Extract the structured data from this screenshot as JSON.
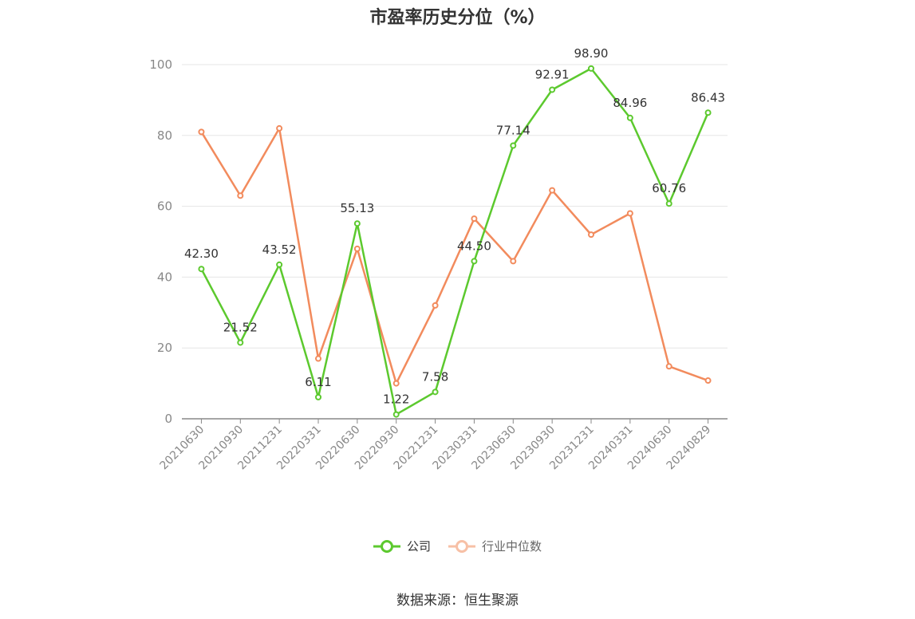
{
  "title": "市盈率历史分位（%）",
  "source": "数据来源：恒生聚源",
  "colors": {
    "company": "#5cc92e",
    "industry": "#f28b5d",
    "grid": "#e6e6e6",
    "axis": "#888888",
    "tick": "#888888"
  },
  "chart_data": {
    "type": "line",
    "title": "市盈率历史分位（%）",
    "xlabel": "",
    "ylabel": "",
    "ylim": [
      0,
      100
    ],
    "yticks": [
      0,
      20,
      40,
      60,
      80,
      100
    ],
    "grid": true,
    "legend_position": "bottom",
    "categories": [
      "20210630",
      "20210930",
      "20211231",
      "20220331",
      "20220630",
      "20220930",
      "20221231",
      "20230331",
      "20230630",
      "20230930",
      "20231231",
      "20240331",
      "20240630",
      "20240829"
    ],
    "series": [
      {
        "name": "公司",
        "values": [
          42.3,
          21.52,
          43.52,
          6.11,
          55.13,
          1.22,
          7.58,
          44.5,
          77.14,
          92.91,
          98.9,
          84.96,
          60.76,
          86.43
        ],
        "labels": [
          "42.30",
          "21.52",
          "43.52",
          "6.11",
          "55.13",
          "1.22",
          "7.58",
          "44.50",
          "77.14",
          "92.91",
          "98.90",
          "84.96",
          "60.76",
          "86.43"
        ]
      },
      {
        "name": "行业中位数",
        "values": [
          81,
          63,
          82,
          17,
          48,
          10,
          32,
          56.5,
          44.5,
          64.5,
          52,
          58,
          14.8,
          10.8
        ]
      }
    ]
  }
}
